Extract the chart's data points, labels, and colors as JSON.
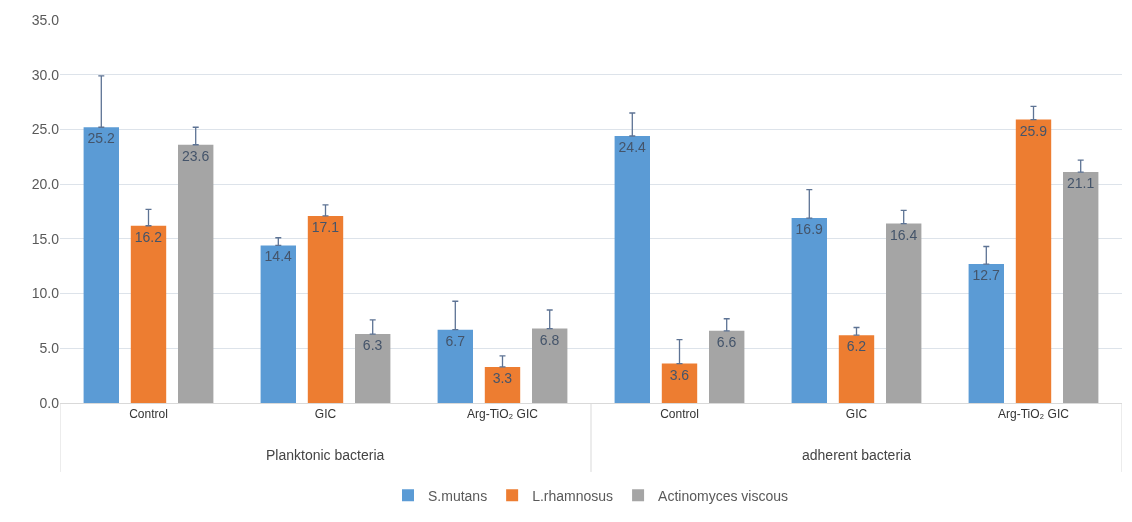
{
  "chart_data": {
    "type": "bar",
    "categories": [
      "Control",
      "GIC",
      "Arg-TiO₂ GIC",
      "Control",
      "GIC",
      "Arg-TiO₂ GIC"
    ],
    "annotations": [
      "Planktonic bacteria",
      "adherent bacteria"
    ],
    "series": [
      {
        "name": "S.mutans",
        "color": "#5b9bd5",
        "values": [
          25.2,
          14.4,
          6.7,
          24.4,
          16.9,
          12.7
        ],
        "errors": [
          4.7,
          0.7,
          2.6,
          2.1,
          2.6,
          1.6
        ]
      },
      {
        "name": "L.rhamnosus",
        "color": "#ed7d31",
        "values": [
          16.2,
          17.1,
          3.3,
          3.6,
          6.2,
          25.9
        ],
        "errors": [
          1.5,
          1.0,
          1.0,
          2.2,
          0.7,
          1.2
        ]
      },
      {
        "name": "Actinomyces viscous",
        "color": "#a5a5a5",
        "values": [
          23.6,
          6.3,
          6.8,
          6.6,
          16.4,
          21.1
        ],
        "errors": [
          1.6,
          1.3,
          1.7,
          1.1,
          1.2,
          1.1
        ]
      }
    ],
    "ylim": [
      0,
      35
    ],
    "yticks": [
      {
        "value": 0,
        "label": "0.0"
      },
      {
        "value": 5,
        "label": "5.0"
      },
      {
        "value": 10,
        "label": "10.0"
      },
      {
        "value": 15,
        "label": "15.0"
      },
      {
        "value": 20,
        "label": "20.0"
      },
      {
        "value": 25,
        "label": "25.0"
      },
      {
        "value": 30,
        "label": "30.0"
      },
      {
        "value": 35,
        "label": "35.0"
      }
    ],
    "grid": "y",
    "legend": "bottom",
    "data_labels": true
  }
}
